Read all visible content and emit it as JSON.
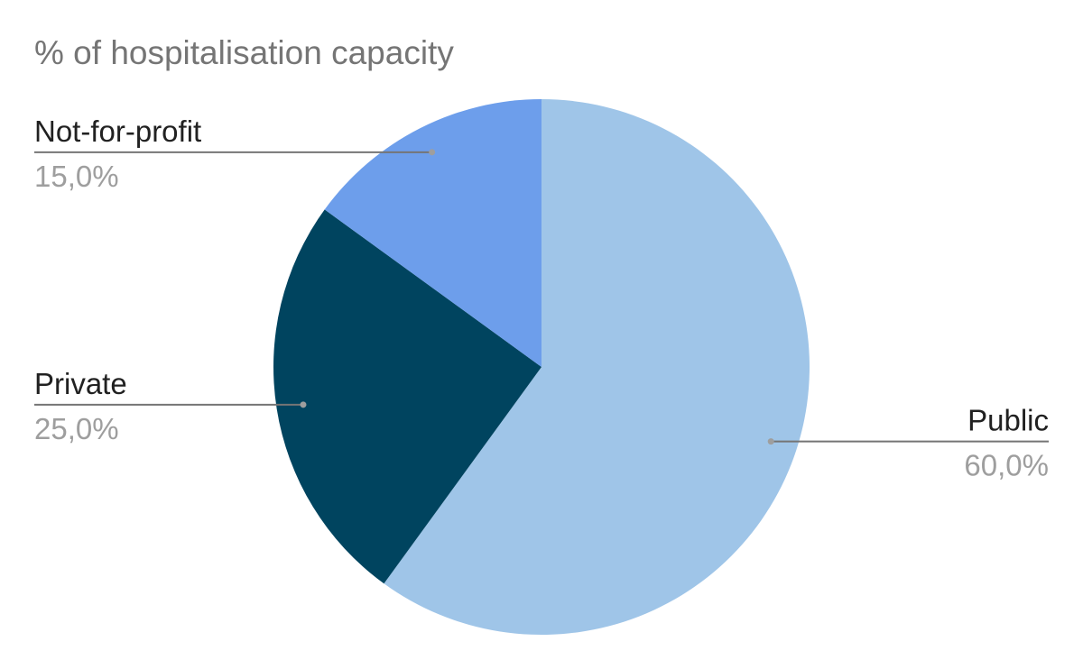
{
  "chart_data": {
    "type": "pie",
    "title": "% of hospitalisation capacity",
    "slices": [
      {
        "label": "Public",
        "value": 60.0,
        "display": "60,0%",
        "color": "#9fc5e8"
      },
      {
        "label": "Private",
        "value": 25.0,
        "display": "25,0%",
        "color": "#00445f"
      },
      {
        "label": "Not-for-profit",
        "value": 15.0,
        "display": "15,0%",
        "color": "#6d9eeb"
      }
    ],
    "start_angle_deg": 0,
    "direction": "clockwise",
    "legend": "none",
    "label_style": "leader-lines"
  }
}
